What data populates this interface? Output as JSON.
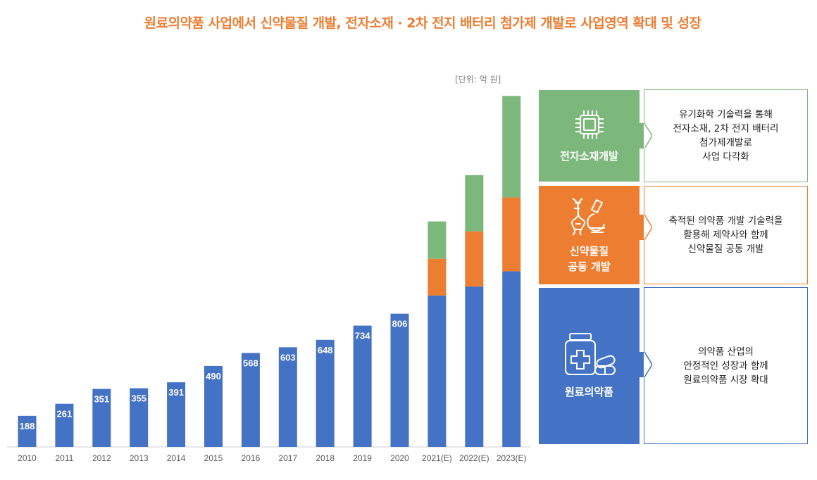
{
  "title": "원료의약품 사업에서 신약물질 개발, 전자소재 · 2차 전지 배터리 첨가제 개발로 사업영역 확대 및 성장",
  "unit_label": "[단위: 억 원]",
  "colors": {
    "raw_pharma": "#4472C4",
    "new_drug": "#ED7D31",
    "electronic": "#7CB87B",
    "title": "#ED7D31"
  },
  "chart_data": {
    "type": "bar",
    "stacked": true,
    "title": "원료의약품 사업에서 신약물질 개발, 전자소재 · 2차 전지 배터리 첨가제 개발로 사업영역 확대 및 성장",
    "unit": "[단위: 억 원]",
    "categories": [
      "2010",
      "2011",
      "2012",
      "2013",
      "2014",
      "2015",
      "2016",
      "2017",
      "2018",
      "2019",
      "2020",
      "2021(E)",
      "2022(E)",
      "2023(E)"
    ],
    "series": [
      {
        "name": "원료의약품",
        "color": "#4472C4",
        "values": [
          188,
          261,
          351,
          355,
          391,
          490,
          568,
          603,
          648,
          734,
          806,
          916,
          970,
          1062
        ]
      },
      {
        "name": "신약물질 공동 개발",
        "color": "#ED7D31",
        "values": [
          0,
          0,
          0,
          0,
          0,
          0,
          0,
          0,
          0,
          0,
          0,
          222,
          334,
          447
        ]
      },
      {
        "name": "전자소재개발",
        "color": "#7CB87B",
        "values": [
          0,
          0,
          0,
          0,
          0,
          0,
          0,
          0,
          0,
          0,
          0,
          226,
          340,
          614
        ]
      }
    ],
    "data_labels": [
      "188",
      "261",
      "351",
      "355",
      "391",
      "490",
      "568",
      "603",
      "648",
      "734",
      "806",
      "",
      "",
      ""
    ],
    "ylim": [
      0,
      2150
    ],
    "xlabel": "",
    "ylabel": "",
    "grid": false
  },
  "panels": [
    {
      "label": "전자소재개발",
      "icon": "chip-icon",
      "color": "#7CB87B",
      "lines": [
        "유기화학 기술력을 통해",
        "전자소재, 2차 전지 배터리",
        "첨가제개발로",
        "사업 다각화"
      ]
    },
    {
      "label": "신약물질\n공동 개발",
      "icon": "dna-microscope-icon",
      "color": "#ED7D31",
      "lines": [
        "축적된 의약품 개발 기술력을",
        "활용해 제약사와 함께",
        "신약물질 공동 개발"
      ]
    },
    {
      "label": "원료의약품",
      "icon": "medicine-bottle-icon",
      "color": "#4472C4",
      "lines": [
        "의약품 산업의",
        "안정적인 성장과 함께",
        "원료의약품 시장 확대"
      ]
    }
  ]
}
